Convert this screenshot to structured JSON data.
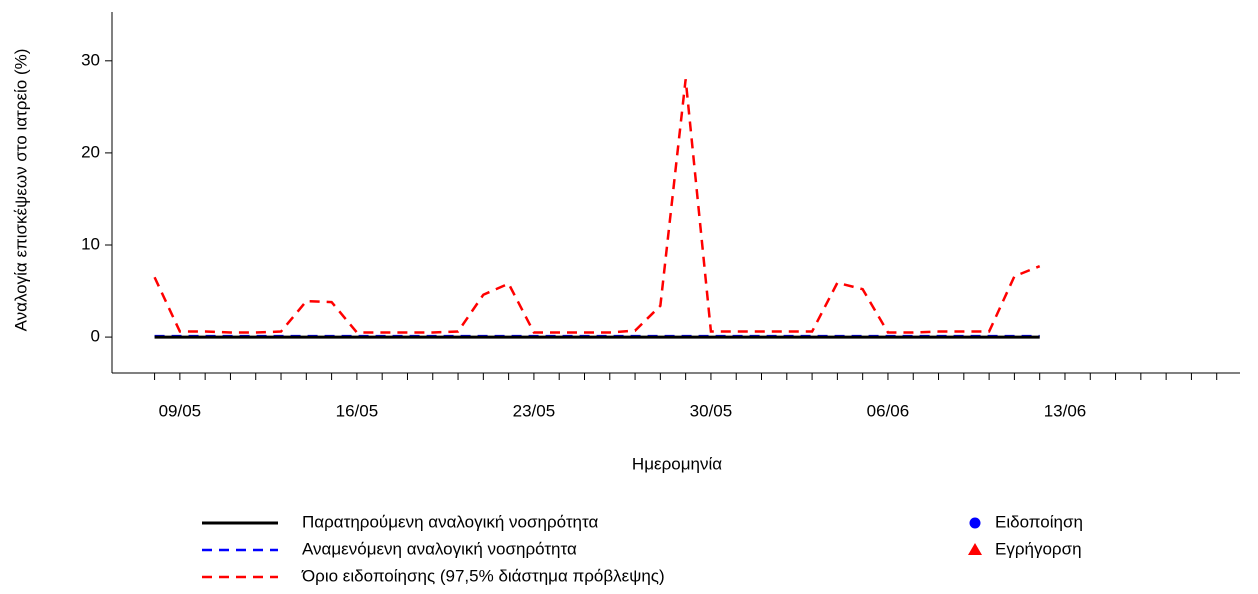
{
  "chart_data": {
    "type": "line",
    "xlabel": "Ημερομηνία",
    "ylabel": "Αναλογία επισκέψεων στο ιατρείο (%)",
    "x": [
      "08/05",
      "09/05",
      "10/05",
      "11/05",
      "12/05",
      "13/05",
      "14/05",
      "15/05",
      "16/05",
      "17/05",
      "18/05",
      "19/05",
      "20/05",
      "21/05",
      "22/05",
      "23/05",
      "24/05",
      "25/05",
      "26/05",
      "27/05",
      "28/05",
      "29/05",
      "30/05",
      "31/05",
      "01/06",
      "02/06",
      "03/06",
      "04/06",
      "05/06",
      "06/06",
      "07/06",
      "08/06",
      "09/06",
      "10/06",
      "11/06",
      "12/06"
    ],
    "series": [
      {
        "name": "Παρατηρούμενη αναλογική νοσηρότητα",
        "color": "#000000",
        "dashed": false,
        "values": [
          0,
          0,
          0,
          0,
          0,
          0,
          0,
          0,
          0,
          0,
          0,
          0,
          0,
          0,
          0,
          0,
          0,
          0,
          0,
          0,
          0,
          0,
          0,
          0,
          0,
          0,
          0,
          0,
          0,
          0,
          0,
          0,
          0,
          0,
          0,
          0
        ]
      },
      {
        "name": "Αναμενόμενη αναλογική νοσηρότητα",
        "color": "#0000ff",
        "dashed": true,
        "values": [
          0.1,
          0.1,
          0.1,
          0.1,
          0.1,
          0.1,
          0.1,
          0.1,
          0.1,
          0.1,
          0.1,
          0.1,
          0.1,
          0.1,
          0.1,
          0.1,
          0.1,
          0.1,
          0.1,
          0.1,
          0.1,
          0.1,
          0.1,
          0.1,
          0.1,
          0.1,
          0.1,
          0.1,
          0.1,
          0.1,
          0.1,
          0.1,
          0.1,
          0.1,
          0.1,
          0.1
        ]
      },
      {
        "name": "Όριο ειδοποίησης (97,5% διάστημα πρόβλεψης)",
        "color": "#ff0000",
        "dashed": true,
        "values": [
          6.5,
          0.6,
          0.6,
          0.5,
          0.5,
          0.6,
          3.9,
          3.8,
          0.5,
          0.5,
          0.5,
          0.5,
          0.6,
          4.6,
          5.8,
          0.5,
          0.5,
          0.5,
          0.5,
          0.7,
          3.4,
          28.0,
          0.6,
          0.6,
          0.6,
          0.6,
          0.6,
          5.9,
          5.2,
          0.5,
          0.5,
          0.6,
          0.6,
          0.6,
          6.6,
          7.7
        ]
      }
    ],
    "legend_markers": [
      {
        "name": "Ειδοποίηση",
        "color": "#0000ff",
        "shape": "circle"
      },
      {
        "name": "Εγρήγορση",
        "color": "#ff0000",
        "shape": "triangle"
      }
    ],
    "xlim": [
      "06/05",
      "20/06"
    ],
    "xticks": [
      "09/05",
      "16/05",
      "23/05",
      "30/05",
      "06/06",
      "13/06"
    ],
    "xminorticks": [
      "08/05",
      "10/05",
      "11/05",
      "12/05",
      "13/05",
      "14/05",
      "15/05",
      "17/05",
      "18/05",
      "19/05",
      "20/05",
      "21/05",
      "22/05",
      "24/05",
      "25/05",
      "26/05",
      "27/05",
      "28/05",
      "29/05",
      "31/05",
      "01/06",
      "02/06",
      "03/06",
      "04/06",
      "05/06",
      "07/06",
      "08/06",
      "09/06",
      "10/06",
      "11/06",
      "12/06",
      "14/06",
      "15/06",
      "16/06",
      "17/06",
      "18/06",
      "19/06"
    ],
    "ylim": [
      -3.9,
      35.3
    ],
    "yticks": [
      0,
      10,
      20,
      30
    ]
  }
}
